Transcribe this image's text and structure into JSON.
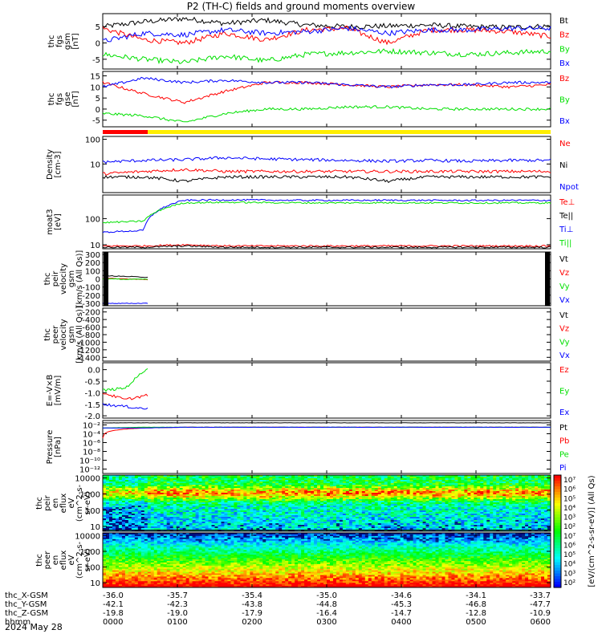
{
  "title": "P2 (TH-C) fields and ground moments overview",
  "colors": {
    "black": "#000000",
    "red": "#ff0000",
    "green": "#00e000",
    "blue": "#0000ff",
    "yellow": "#ffee00"
  },
  "chart_data": [
    {
      "type": "line",
      "panel": "fgs-gsm",
      "ylabel_lines": [
        "thc",
        "fgs",
        "gsm",
        "[nT]"
      ],
      "ylim": [
        -8,
        9
      ],
      "yticks": [
        "5",
        "0",
        "-5"
      ],
      "tick_values": [
        5,
        0,
        -5
      ],
      "series": [
        {
          "name": "Bt",
          "color": "#000000",
          "values": [
            5,
            6.5,
            7.5,
            6,
            7,
            5.5,
            5,
            5.2,
            5.5,
            5,
            4.8,
            5.2
          ]
        },
        {
          "name": "Bz",
          "color": "#ff0000",
          "values": [
            4.5,
            1,
            0,
            3,
            1,
            4,
            4.5,
            0,
            4,
            4,
            3.5,
            2
          ]
        },
        {
          "name": "By",
          "color": "#00e000",
          "values": [
            -3.5,
            -5,
            -6,
            -4,
            -5.5,
            -3.5,
            -3,
            -2.5,
            -3,
            -3.5,
            -3,
            -2.5
          ]
        },
        {
          "name": "Bx",
          "color": "#0000ff",
          "values": [
            0.5,
            3,
            2.5,
            4,
            3,
            3.5,
            4.5,
            3,
            4,
            4,
            4.5,
            4.5
          ]
        }
      ]
    },
    {
      "type": "line",
      "panel": "fgs-gse",
      "ylabel_lines": [
        "thc",
        "fgs",
        "gse",
        "[nT]"
      ],
      "ylim": [
        -8,
        17
      ],
      "yticks": [
        "15",
        "10",
        "5",
        "0",
        "-5"
      ],
      "tick_values": [
        15,
        10,
        5,
        0,
        -5
      ],
      "series": [
        {
          "name": "Bz",
          "color": "#ff0000",
          "values": [
            12,
            7,
            3,
            8,
            12,
            12,
            11,
            10,
            11,
            11,
            10,
            11
          ]
        },
        {
          "name": "By",
          "color": "#00e000",
          "values": [
            -2,
            -3,
            -6,
            -2,
            0,
            0,
            1,
            1,
            0,
            0,
            0,
            0
          ]
        },
        {
          "name": "Bx",
          "color": "#0000ff",
          "values": [
            10,
            14,
            12,
            13,
            12,
            12,
            11,
            10,
            11,
            11,
            12,
            12
          ]
        }
      ]
    },
    {
      "type": "line",
      "panel": "density",
      "ylabel_lines": [
        "Density",
        "[cm-3]"
      ],
      "log": true,
      "ylim": [
        0.7,
        130
      ],
      "yticks": [
        "100",
        "10"
      ],
      "tick_values": [
        100,
        10
      ],
      "series": [
        {
          "name": "Ne",
          "color": "#ff0000",
          "values": [
            4,
            5,
            6,
            5,
            5,
            5,
            5,
            5,
            5,
            5,
            5,
            5
          ]
        },
        {
          "name": "Ni",
          "color": "#000000",
          "values": [
            3,
            3,
            2,
            3,
            3,
            3,
            3,
            2,
            3,
            3,
            3,
            3
          ]
        },
        {
          "name": "Npot",
          "color": "#0000ff",
          "values": [
            12,
            14,
            15,
            18,
            16,
            15,
            14,
            13,
            14,
            13,
            14,
            14
          ]
        }
      ]
    },
    {
      "type": "line",
      "panel": "moments-temp",
      "ylabel_lines": [
        "moat3",
        "[eV]"
      ],
      "log": true,
      "ylim": [
        7,
        800
      ],
      "yticks": [
        "100",
        "10"
      ],
      "tick_values": [
        100,
        10
      ],
      "series": [
        {
          "name": "Te⊥",
          "color": "#ff0000",
          "values": [
            9,
            9,
            10,
            9,
            9,
            9,
            9,
            9,
            9,
            9,
            9,
            9
          ]
        },
        {
          "name": "Te||",
          "color": "#000000",
          "values": [
            8,
            8,
            9,
            8,
            8,
            8,
            8,
            8,
            8,
            8,
            8,
            8
          ]
        },
        {
          "name": "Ti⊥",
          "color": "#0000ff",
          "values": [
            30,
            35,
            500,
            520,
            510,
            500,
            500,
            505,
            500,
            495,
            500,
            500
          ]
        },
        {
          "name": "Ti||",
          "color": "#00e000",
          "values": [
            70,
            80,
            400,
            420,
            410,
            400,
            400,
            405,
            400,
            398,
            400,
            400
          ]
        }
      ]
    },
    {
      "type": "line",
      "panel": "peir-velocity",
      "ylabel_lines": [
        "thc",
        "peir",
        "velocity",
        "gsm",
        "[km/s (All Qs)]"
      ],
      "ylim": [
        -330,
        330
      ],
      "yticks": [
        "300",
        "200",
        "100",
        "0",
        "-100",
        "-200",
        "-300"
      ],
      "tick_values": [
        300,
        200,
        100,
        0,
        -100,
        -200,
        -300
      ],
      "series": [
        {
          "name": "Vt",
          "color": "#000000",
          "values": [
            40,
            30,
            20
          ]
        },
        {
          "name": "Vz",
          "color": "#ff0000",
          "values": [
            5,
            0,
            -10
          ]
        },
        {
          "name": "Vy",
          "color": "#00e000",
          "values": [
            0,
            -5,
            -5
          ]
        },
        {
          "name": "Vx",
          "color": "#0000ff",
          "values": [
            -300,
            -300,
            -300
          ]
        }
      ]
    },
    {
      "type": "line",
      "panel": "peer-velocity",
      "ylabel_lines": [
        "thc",
        "peer",
        "velocity",
        "gsm",
        "[km/s (All Qs)]"
      ],
      "ylim": [
        -1500,
        -100
      ],
      "yticks": [
        "-200",
        "-400",
        "-600",
        "-800",
        "-1000",
        "-1200",
        "-1400"
      ],
      "tick_values": [
        -200,
        -400,
        -600,
        -800,
        -1000,
        -1200,
        -1400
      ],
      "series": [
        {
          "name": "Vt",
          "color": "#000000",
          "values": []
        },
        {
          "name": "Vz",
          "color": "#ff0000",
          "values": []
        },
        {
          "name": "Vy",
          "color": "#00e000",
          "values": []
        },
        {
          "name": "Vx",
          "color": "#0000ff",
          "values": []
        }
      ]
    },
    {
      "type": "line",
      "panel": "efield",
      "ylabel_lines": [
        "E=-V×B",
        "[mV/m]"
      ],
      "ylim": [
        -2.1,
        0.3
      ],
      "yticks": [
        "0.0",
        "-0.5",
        "-1.0",
        "-1.5",
        "-2.0"
      ],
      "tick_values": [
        0,
        -0.5,
        -1.0,
        -1.5,
        -2.0
      ],
      "series": [
        {
          "name": "Ez",
          "color": "#ff0000",
          "values": [
            -1.0,
            -1.3,
            -1.1
          ]
        },
        {
          "name": "Ey",
          "color": "#00e000",
          "values": [
            -0.9,
            -0.8,
            0.1
          ]
        },
        {
          "name": "Ex",
          "color": "#0000ff",
          "values": [
            -1.5,
            -1.6,
            -1.7
          ]
        }
      ]
    },
    {
      "type": "line",
      "panel": "pressure",
      "ylabel_lines": [
        "Pressure",
        "[nPa]"
      ],
      "log": true,
      "ylim": [
        1e-13,
        0.1
      ],
      "yticks": [
        "10⁻²",
        "10⁻⁴",
        "10⁻⁶",
        "10⁻⁸",
        "10⁻¹⁰",
        "10⁻¹²"
      ],
      "tick_values": [
        0.01,
        0.0001,
        1e-06,
        1e-08,
        1e-10,
        1e-12
      ],
      "series": [
        {
          "name": "Pt",
          "color": "#000000",
          "values": [
            0.03,
            0.03,
            0.03,
            0.03,
            0.03,
            0.03,
            0.03,
            0.03,
            0.03,
            0.03,
            0.03,
            0.03
          ]
        },
        {
          "name": "Pb",
          "color": "#ff0000",
          "values": [
            1e-05,
            0.002,
            0.003,
            0.003,
            0.003,
            0.003,
            0.003,
            0.003,
            0.003,
            0.003,
            0.003,
            0.003
          ]
        },
        {
          "name": "Pe",
          "color": "#00e000",
          "values": [
            0.002,
            0.003,
            0.003,
            0.003,
            0.003,
            0.003,
            0.003,
            0.003,
            0.003,
            0.003,
            0.003,
            0.003
          ]
        },
        {
          "name": "Pi",
          "color": "#0000ff",
          "values": [
            0.002,
            0.002,
            0.003,
            0.003,
            0.003,
            0.003,
            0.003,
            0.003,
            0.003,
            0.003,
            0.003,
            0.003
          ]
        }
      ]
    },
    {
      "type": "heatmap",
      "panel": "peir-eflux",
      "ylabel_lines": [
        "thc",
        "peir",
        "en",
        "eflux",
        "eV",
        "(cm^2-s-",
        "sr-eV)"
      ],
      "log": true,
      "ylim": [
        5,
        15000
      ],
      "yticks": [
        "10000",
        "1000",
        "100",
        "10"
      ],
      "tick_values": [
        10000,
        1000,
        100,
        10
      ]
    },
    {
      "type": "heatmap",
      "panel": "peer-eflux",
      "ylabel_lines": [
        "thc",
        "peer",
        "en",
        "eflux",
        "eV",
        "(cm^2-s-",
        "sr-eV)"
      ],
      "log": true,
      "ylim": [
        5,
        15000
      ],
      "yticks": [
        "10000",
        "1000",
        "100",
        "10"
      ],
      "tick_values": [
        10000,
        1000,
        100,
        10
      ]
    }
  ],
  "colorbar": {
    "label": "[eV/(cm^2-s-sr-eV)] (All Qs)",
    "ticks": [
      "10⁷",
      "10⁶",
      "10⁵",
      "10⁴",
      "10³",
      "10²",
      "10⁷",
      "10⁶",
      "10⁵",
      "10⁴",
      "10³",
      "10²"
    ]
  },
  "xaxis": {
    "rows": [
      {
        "label": "thc_X-GSM",
        "values": [
          "-36.0",
          "-35.7",
          "-35.4",
          "-35.0",
          "-34.6",
          "-34.1",
          "-33.7"
        ]
      },
      {
        "label": "thc_Y-GSM",
        "values": [
          "-42.1",
          "-42.3",
          "-43.8",
          "-44.8",
          "-45.3",
          "-46.8",
          "-47.7"
        ]
      },
      {
        "label": "thc_Z-GSM",
        "values": [
          "-19.8",
          "-19.0",
          "-17.9",
          "-16.4",
          "-14.7",
          "-12.8",
          "-10.9"
        ]
      },
      {
        "label": "hhmm",
        "values": [
          "0000",
          "0100",
          "0200",
          "0300",
          "0400",
          "0500",
          "0600"
        ]
      }
    ],
    "date": "2024 May 28"
  }
}
